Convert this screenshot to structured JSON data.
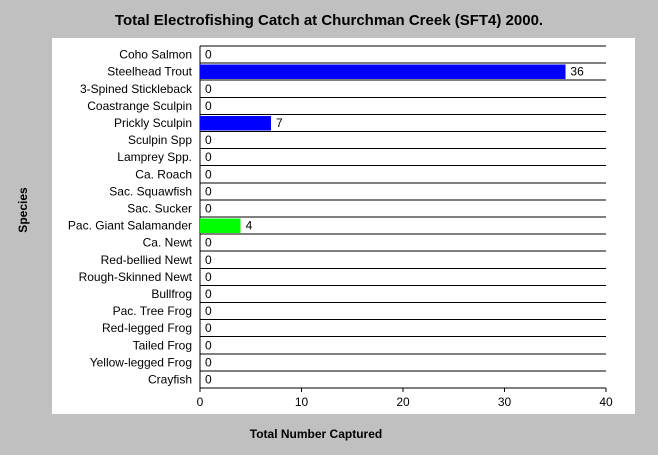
{
  "chart_data": {
    "type": "bar",
    "orientation": "horizontal",
    "title": "Total Electrofishing Catch at Churchman Creek (SFT4) 2000.",
    "xlabel": "Total Number Captured",
    "ylabel": "Species",
    "xlim": [
      0,
      40
    ],
    "xticks": [
      "0",
      "10",
      "20",
      "30",
      "40"
    ],
    "grid": "horizontal row lines",
    "legend": "none",
    "categories": [
      "Coho Salmon",
      "Steelhead Trout",
      "3-Spined Stickleback",
      "Coastrange Sculpin",
      "Prickly Sculpin",
      "Sculpin Spp",
      "Lamprey Spp.",
      "Ca. Roach",
      "Sac. Squawfish",
      "Sac. Sucker",
      "Pac. Giant Salamander",
      "Ca. Newt",
      "Red-bellied Newt",
      "Rough-Skinned Newt",
      "Bullfrog",
      "Pac. Tree Frog",
      "Red-legged Frog",
      "Tailed Frog",
      "Yellow-legged Frog",
      "Crayfish"
    ],
    "values": [
      0,
      36,
      0,
      0,
      7,
      0,
      0,
      0,
      0,
      0,
      4,
      0,
      0,
      0,
      0,
      0,
      0,
      0,
      0,
      0
    ],
    "data_labels": [
      "0",
      "36",
      "0",
      "0",
      "7",
      "0",
      "0",
      "0",
      "0",
      "0",
      "4",
      "0",
      "0",
      "0",
      "0",
      "0",
      "0",
      "0",
      "0",
      "0"
    ],
    "bar_colors": [
      "#0000ff",
      "#0000ff",
      "#0000ff",
      "#0000ff",
      "#0000ff",
      "#0000ff",
      "#0000ff",
      "#0000ff",
      "#0000ff",
      "#0000ff",
      "#00ff00",
      "#0000ff",
      "#0000ff",
      "#0000ff",
      "#0000ff",
      "#0000ff",
      "#0000ff",
      "#0000ff",
      "#0000ff",
      "#0000ff"
    ],
    "colors": {
      "background": "#c0c0c0",
      "plot_area": "#ffffff",
      "gridline": "#000000"
    }
  }
}
